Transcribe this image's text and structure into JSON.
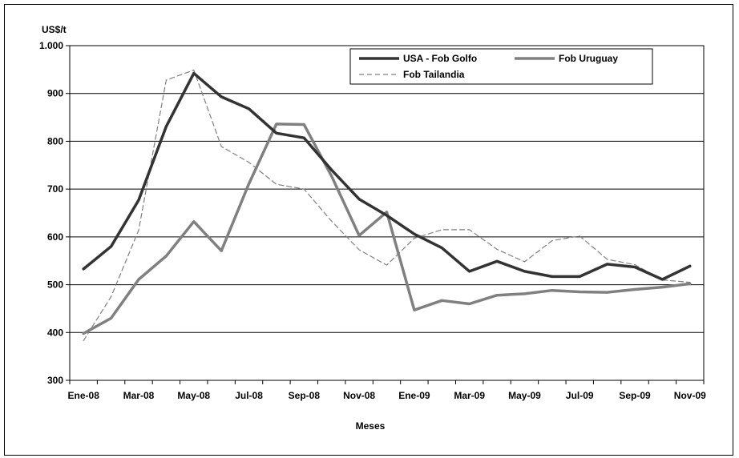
{
  "chart_data": {
    "type": "line",
    "title": "",
    "ylabel": "US$/t",
    "xlabel": "Meses",
    "ylim": [
      300,
      1000
    ],
    "yticks": [
      300,
      400,
      500,
      600,
      700,
      800,
      900,
      1000
    ],
    "ytick_labels": [
      "300",
      "400",
      "500",
      "600",
      "700",
      "800",
      "900",
      "1.000"
    ],
    "x": [
      "Ene-08",
      "Feb-08",
      "Mar-08",
      "Abr-08",
      "May-08",
      "Jun-08",
      "Jul-08",
      "Ago-08",
      "Sep-08",
      "Oct-08",
      "Nov-08",
      "Dic-08",
      "Ene-09",
      "Feb-09",
      "Mar-09",
      "Abr-09",
      "May-09",
      "Jun-09",
      "Jul-09",
      "Ago-09",
      "Sep-09",
      "Oct-09",
      "Nov-09"
    ],
    "xtick_labels": [
      "Ene-08",
      "Mar-08",
      "May-08",
      "Jul-08",
      "Sep-08",
      "Nov-08",
      "Ene-09",
      "Mar-09",
      "May-09",
      "Jul-09",
      "Sep-09",
      "Nov-09"
    ],
    "grid": true,
    "legend_position": "top-right",
    "series": [
      {
        "name": "USA - Fob Golfo",
        "color": "#333333",
        "style": "solid-thick",
        "values": [
          533,
          580,
          677,
          831,
          942,
          893,
          868,
          817,
          807,
          740,
          679,
          645,
          606,
          577,
          528,
          549,
          528,
          517,
          517,
          543,
          537,
          511,
          539
        ]
      },
      {
        "name": "Fob Uruguay",
        "color": "#808080",
        "style": "solid-thick",
        "values": [
          398,
          430,
          511,
          560,
          632,
          571,
          711,
          836,
          835,
          727,
          603,
          652,
          447,
          467,
          460,
          478,
          481,
          488,
          485,
          484,
          490,
          495,
          502
        ]
      },
      {
        "name": "Fob Tailandia",
        "color": "#808080",
        "style": "dashed",
        "values": [
          383,
          475,
          614,
          928,
          949,
          789,
          756,
          710,
          700,
          633,
          573,
          541,
          597,
          615,
          615,
          574,
          548,
          592,
          602,
          553,
          542,
          510,
          505
        ]
      }
    ]
  }
}
